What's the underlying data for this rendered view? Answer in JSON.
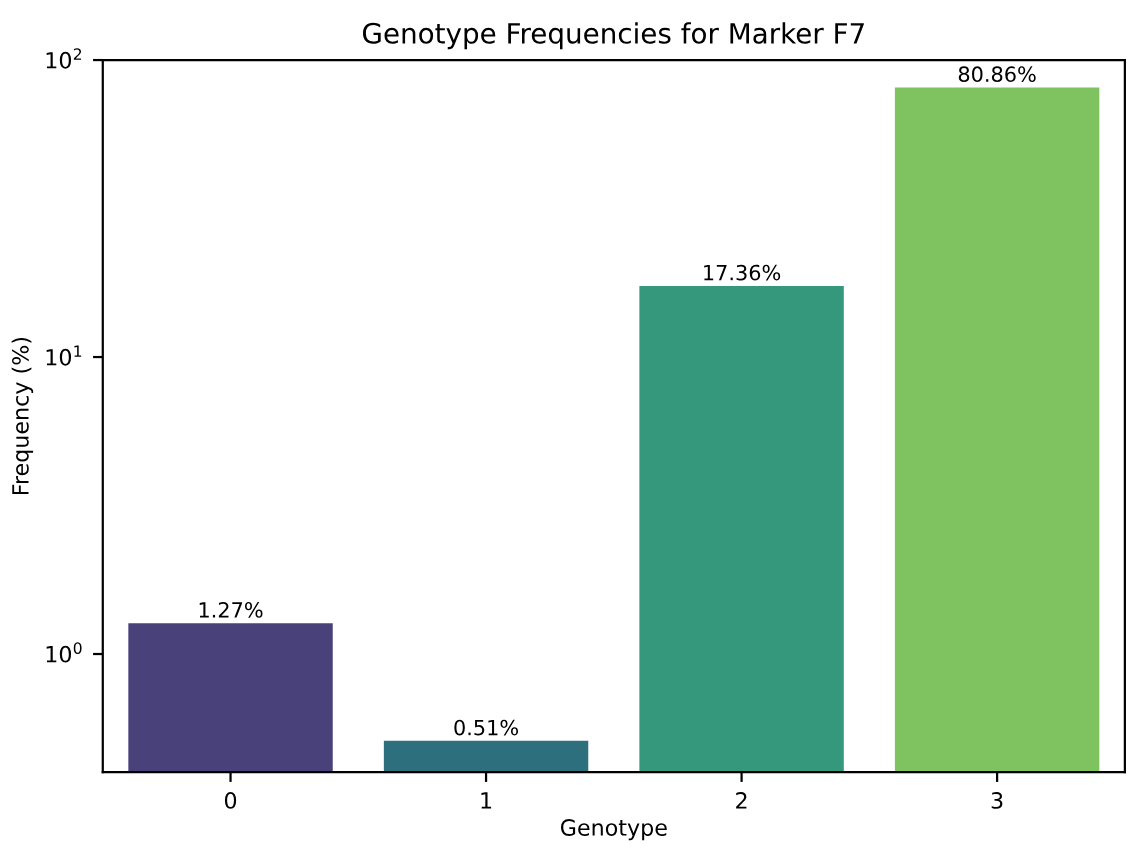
{
  "chart_data": {
    "type": "bar",
    "title": "Genotype Frequencies for Marker F7",
    "xlabel": "Genotype",
    "ylabel": "Frequency (%)",
    "categories": [
      "0",
      "1",
      "2",
      "3"
    ],
    "values": [
      1.27,
      0.51,
      17.36,
      80.86
    ],
    "value_labels": [
      "1.27%",
      "0.51%",
      "17.36%",
      "80.86%"
    ],
    "colors": [
      "#48417a",
      "#2e6f7e",
      "#35977b",
      "#7ec35f"
    ],
    "log": "y",
    "ylim": [
      0.4,
      100
    ],
    "yticks": [
      {
        "value": 1,
        "label": "10$^{0}$"
      },
      {
        "value": 10,
        "label": "10$^{1}$"
      },
      {
        "value": 100,
        "label": "10$^{2}$"
      }
    ],
    "grid": false,
    "legend": false
  }
}
